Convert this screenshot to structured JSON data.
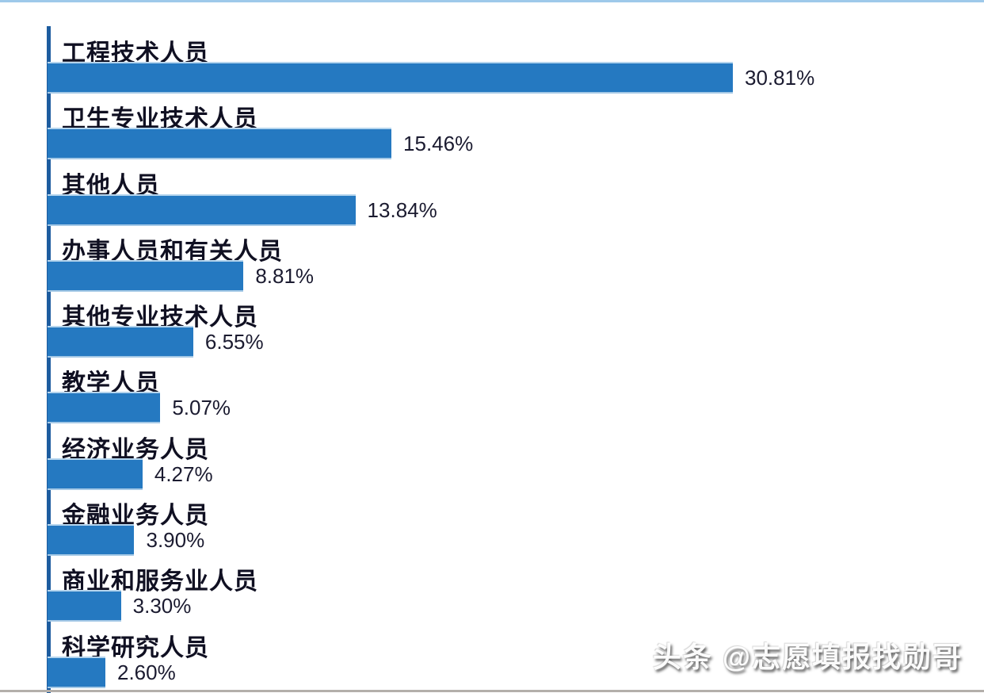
{
  "chart_data": {
    "type": "bar",
    "orientation": "horizontal",
    "title": "",
    "xlabel": "",
    "ylabel": "",
    "grid": false,
    "legend": null,
    "xlim": [
      0,
      32
    ],
    "categories": [
      "工程技术人员",
      "卫生专业技术人员",
      "其他人员",
      "办事人员和有关人员",
      "其他专业技术人员",
      "教学人员",
      "经济业务人员",
      "金融业务人员",
      "商业和服务业人员",
      "科学研究人员"
    ],
    "values": [
      30.81,
      15.46,
      13.84,
      8.81,
      6.55,
      5.07,
      4.27,
      3.9,
      3.3,
      2.6
    ],
    "value_labels": [
      "30.81%",
      "15.46%",
      "13.84%",
      "8.81%",
      "6.55%",
      "5.07%",
      "4.27%",
      "3.90%",
      "3.30%",
      "2.60%"
    ],
    "bar_color": "#2579c1",
    "axis_color": "#1d5c9f"
  },
  "watermark": {
    "text": "头条 @志愿填报找勋哥"
  }
}
